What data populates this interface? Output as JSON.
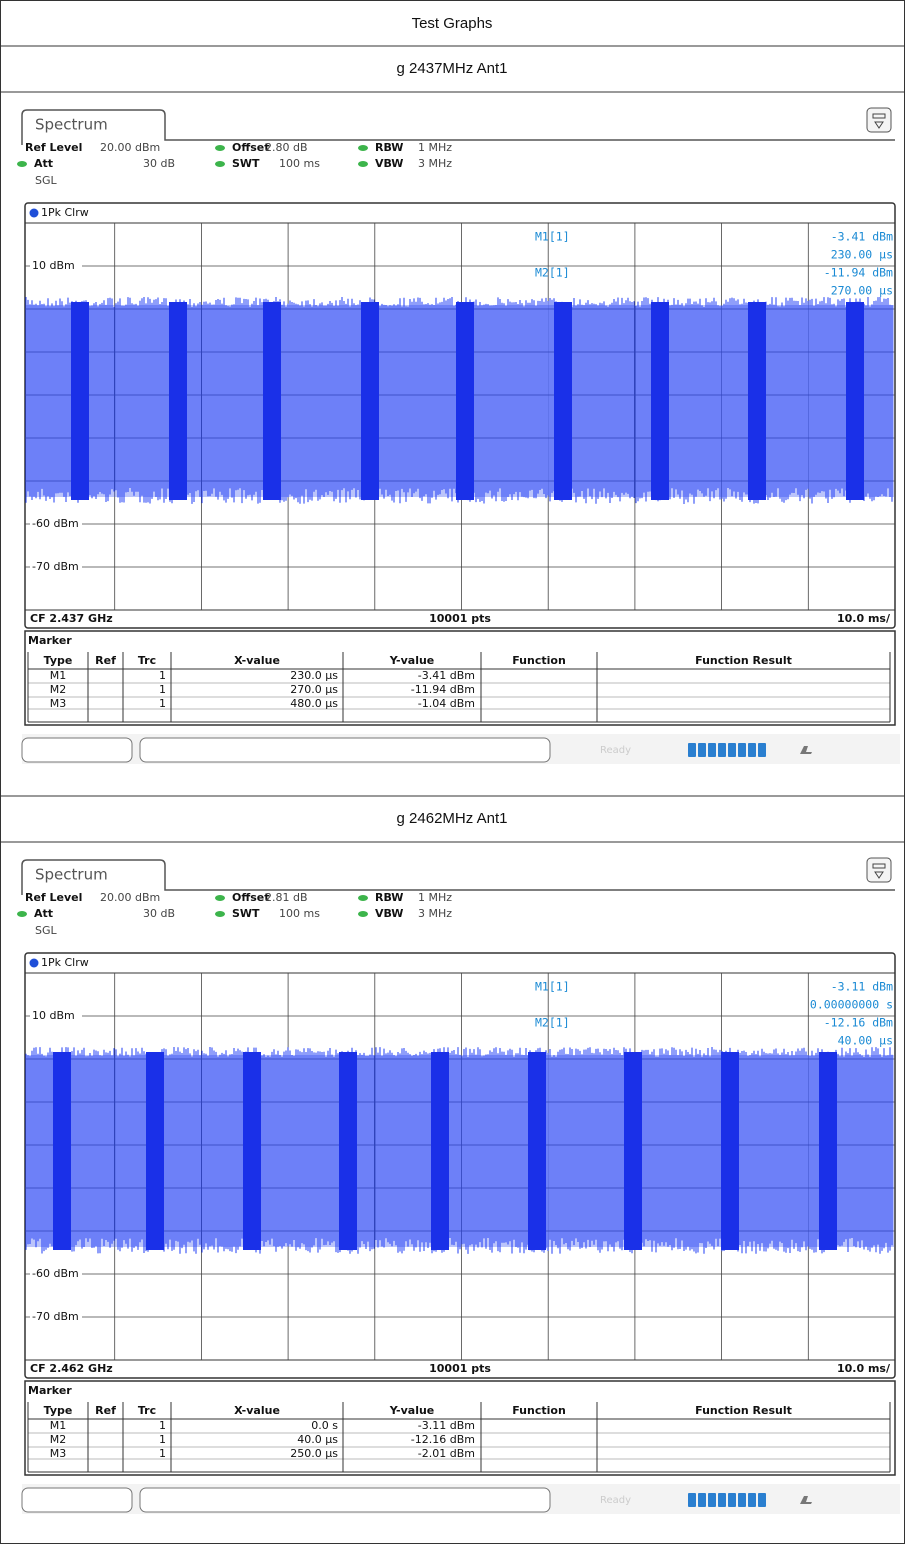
{
  "header": {
    "title": "Test Graphs"
  },
  "sections": [
    {
      "caption": "g 2437MHz Ant1",
      "screen": {
        "tab": "Spectrum",
        "settings": [
          [
            {
              "label": "Ref Level",
              "value": "20.00 dBm"
            },
            {
              "label": "Offset",
              "value": "2.80 dB"
            },
            {
              "label": "RBW",
              "value": "1 MHz"
            }
          ],
          [
            {
              "label": "Att",
              "value": "30 dB"
            },
            {
              "label": "SWT",
              "value": "100 ms"
            },
            {
              "label": "VBW",
              "value": "3 MHz"
            }
          ]
        ],
        "mode": "SGL",
        "trace": "1Pk Clrw",
        "y_labels": [
          "10 dBm",
          "-60 dBm",
          "-70 dBm"
        ],
        "readouts": [
          {
            "marker": "M1[1]",
            "lines": [
              "-3.41 dBm",
              "230.00 µs"
            ]
          },
          {
            "marker": "M2[1]",
            "lines": [
              "-11.94 dBm",
              "270.00 µs"
            ]
          }
        ],
        "footer": {
          "center_frequency": "CF 2.437 GHz",
          "points": "10001 pts",
          "time_per_division": "10.0 ms/"
        },
        "marker_table": {
          "title": "Marker",
          "columns": [
            "Type",
            "Ref",
            "Trc",
            "X-value",
            "Y-value",
            "Function",
            "Function Result"
          ],
          "rows": [
            {
              "type": "M1",
              "trc": "1",
              "x": "230.0 µs",
              "y": "-3.41 dBm"
            },
            {
              "type": "M2",
              "trc": "1",
              "x": "270.0 µs",
              "y": "-11.94 dBm"
            },
            {
              "type": "M3",
              "trc": "1",
              "x": "480.0 µs",
              "y": "-1.04 dBm"
            }
          ]
        },
        "status": "Ready"
      }
    },
    {
      "caption": "g 2462MHz Ant1",
      "screen": {
        "tab": "Spectrum",
        "settings": [
          [
            {
              "label": "Ref Level",
              "value": "20.00 dBm"
            },
            {
              "label": "Offset",
              "value": "2.81 dB"
            },
            {
              "label": "RBW",
              "value": "1 MHz"
            }
          ],
          [
            {
              "label": "Att",
              "value": "30 dB"
            },
            {
              "label": "SWT",
              "value": "100 ms"
            },
            {
              "label": "VBW",
              "value": "3 MHz"
            }
          ]
        ],
        "mode": "SGL",
        "trace": "1Pk Clrw",
        "y_labels": [
          "10 dBm",
          "-60 dBm",
          "-70 dBm"
        ],
        "readouts": [
          {
            "marker": "M1[1]",
            "lines": [
              "-3.11 dBm",
              "0.00000000 s"
            ]
          },
          {
            "marker": "M2[1]",
            "lines": [
              "-12.16 dBm",
              "40.00 µs"
            ]
          }
        ],
        "footer": {
          "center_frequency": "CF 2.462 GHz",
          "points": "10001 pts",
          "time_per_division": "10.0 ms/"
        },
        "marker_table": {
          "title": "Marker",
          "columns": [
            "Type",
            "Ref",
            "Trc",
            "X-value",
            "Y-value",
            "Function",
            "Function Result"
          ],
          "rows": [
            {
              "type": "M1",
              "trc": "1",
              "x": "0.0 s",
              "y": "-3.11 dBm"
            },
            {
              "type": "M2",
              "trc": "1",
              "x": "40.0 µs",
              "y": "-12.16 dBm"
            },
            {
              "type": "M3",
              "trc": "1",
              "x": "250.0 µs",
              "y": "-2.01 dBm"
            }
          ]
        },
        "status": "Ready"
      }
    }
  ]
}
